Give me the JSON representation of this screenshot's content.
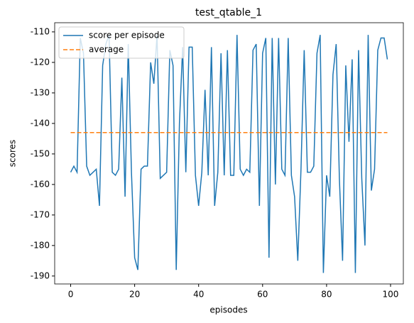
{
  "chart_data": {
    "type": "line",
    "title": "test_qtable_1",
    "xlabel": "episodes",
    "ylabel": "scores",
    "x": [
      0,
      1,
      2,
      3,
      4,
      5,
      6,
      7,
      8,
      9,
      10,
      11,
      12,
      13,
      14,
      15,
      16,
      17,
      18,
      19,
      20,
      21,
      22,
      23,
      24,
      25,
      26,
      27,
      28,
      29,
      30,
      31,
      32,
      33,
      34,
      35,
      36,
      37,
      38,
      39,
      40,
      41,
      42,
      43,
      44,
      45,
      46,
      47,
      48,
      49,
      50,
      51,
      52,
      53,
      54,
      55,
      56,
      57,
      58,
      59,
      60,
      61,
      62,
      63,
      64,
      65,
      66,
      67,
      68,
      69,
      70,
      71,
      72,
      73,
      74,
      75,
      76,
      77,
      78,
      79,
      80,
      81,
      82,
      83,
      84,
      85,
      86,
      87,
      88,
      89,
      90,
      91,
      92,
      93,
      94,
      95,
      96,
      97,
      98,
      99
    ],
    "series": [
      {
        "name": "score per episode",
        "color": "#1f77b4",
        "style": "solid",
        "values": [
          -156,
          -154,
          -156,
          -112,
          -117,
          -154,
          -157,
          -156,
          -155,
          -167,
          -121,
          -114,
          -111,
          -156,
          -157,
          -155,
          -125,
          -164,
          -114,
          -156,
          -184,
          -188,
          -155,
          -154,
          -154,
          -120,
          -127,
          -111,
          -158,
          -157,
          -156,
          -116,
          -121,
          -188,
          -140,
          -115,
          -156,
          -115,
          -115,
          -157,
          -167,
          -156,
          -129,
          -157,
          -115,
          -167,
          -156,
          -117,
          -157,
          -116,
          -157,
          -157,
          -111,
          -155,
          -157,
          -155,
          -156,
          -116,
          -114,
          -167,
          -117,
          -112,
          -184,
          -112,
          -160,
          -112,
          -155,
          -157,
          -112,
          -157,
          -164,
          -185,
          -155,
          -116,
          -156,
          -156,
          -154,
          -117,
          -111,
          -189,
          -157,
          -164,
          -124,
          -114,
          -158,
          -185,
          -121,
          -146,
          -119,
          -189,
          -116,
          -158,
          -180,
          -111,
          -162,
          -155,
          -116,
          -112,
          -112,
          -119
        ]
      },
      {
        "name": "average",
        "color": "#ff7f0e",
        "style": "dashed",
        "value": -143
      }
    ],
    "xlim": [
      -5,
      104
    ],
    "ylim": [
      -192.6,
      -107
    ],
    "xticks": [
      0,
      20,
      40,
      60,
      80,
      100
    ],
    "yticks": [
      -190,
      -180,
      -170,
      -160,
      -150,
      -140,
      -130,
      -120,
      -110
    ],
    "legend": "upper left",
    "grid": false
  }
}
